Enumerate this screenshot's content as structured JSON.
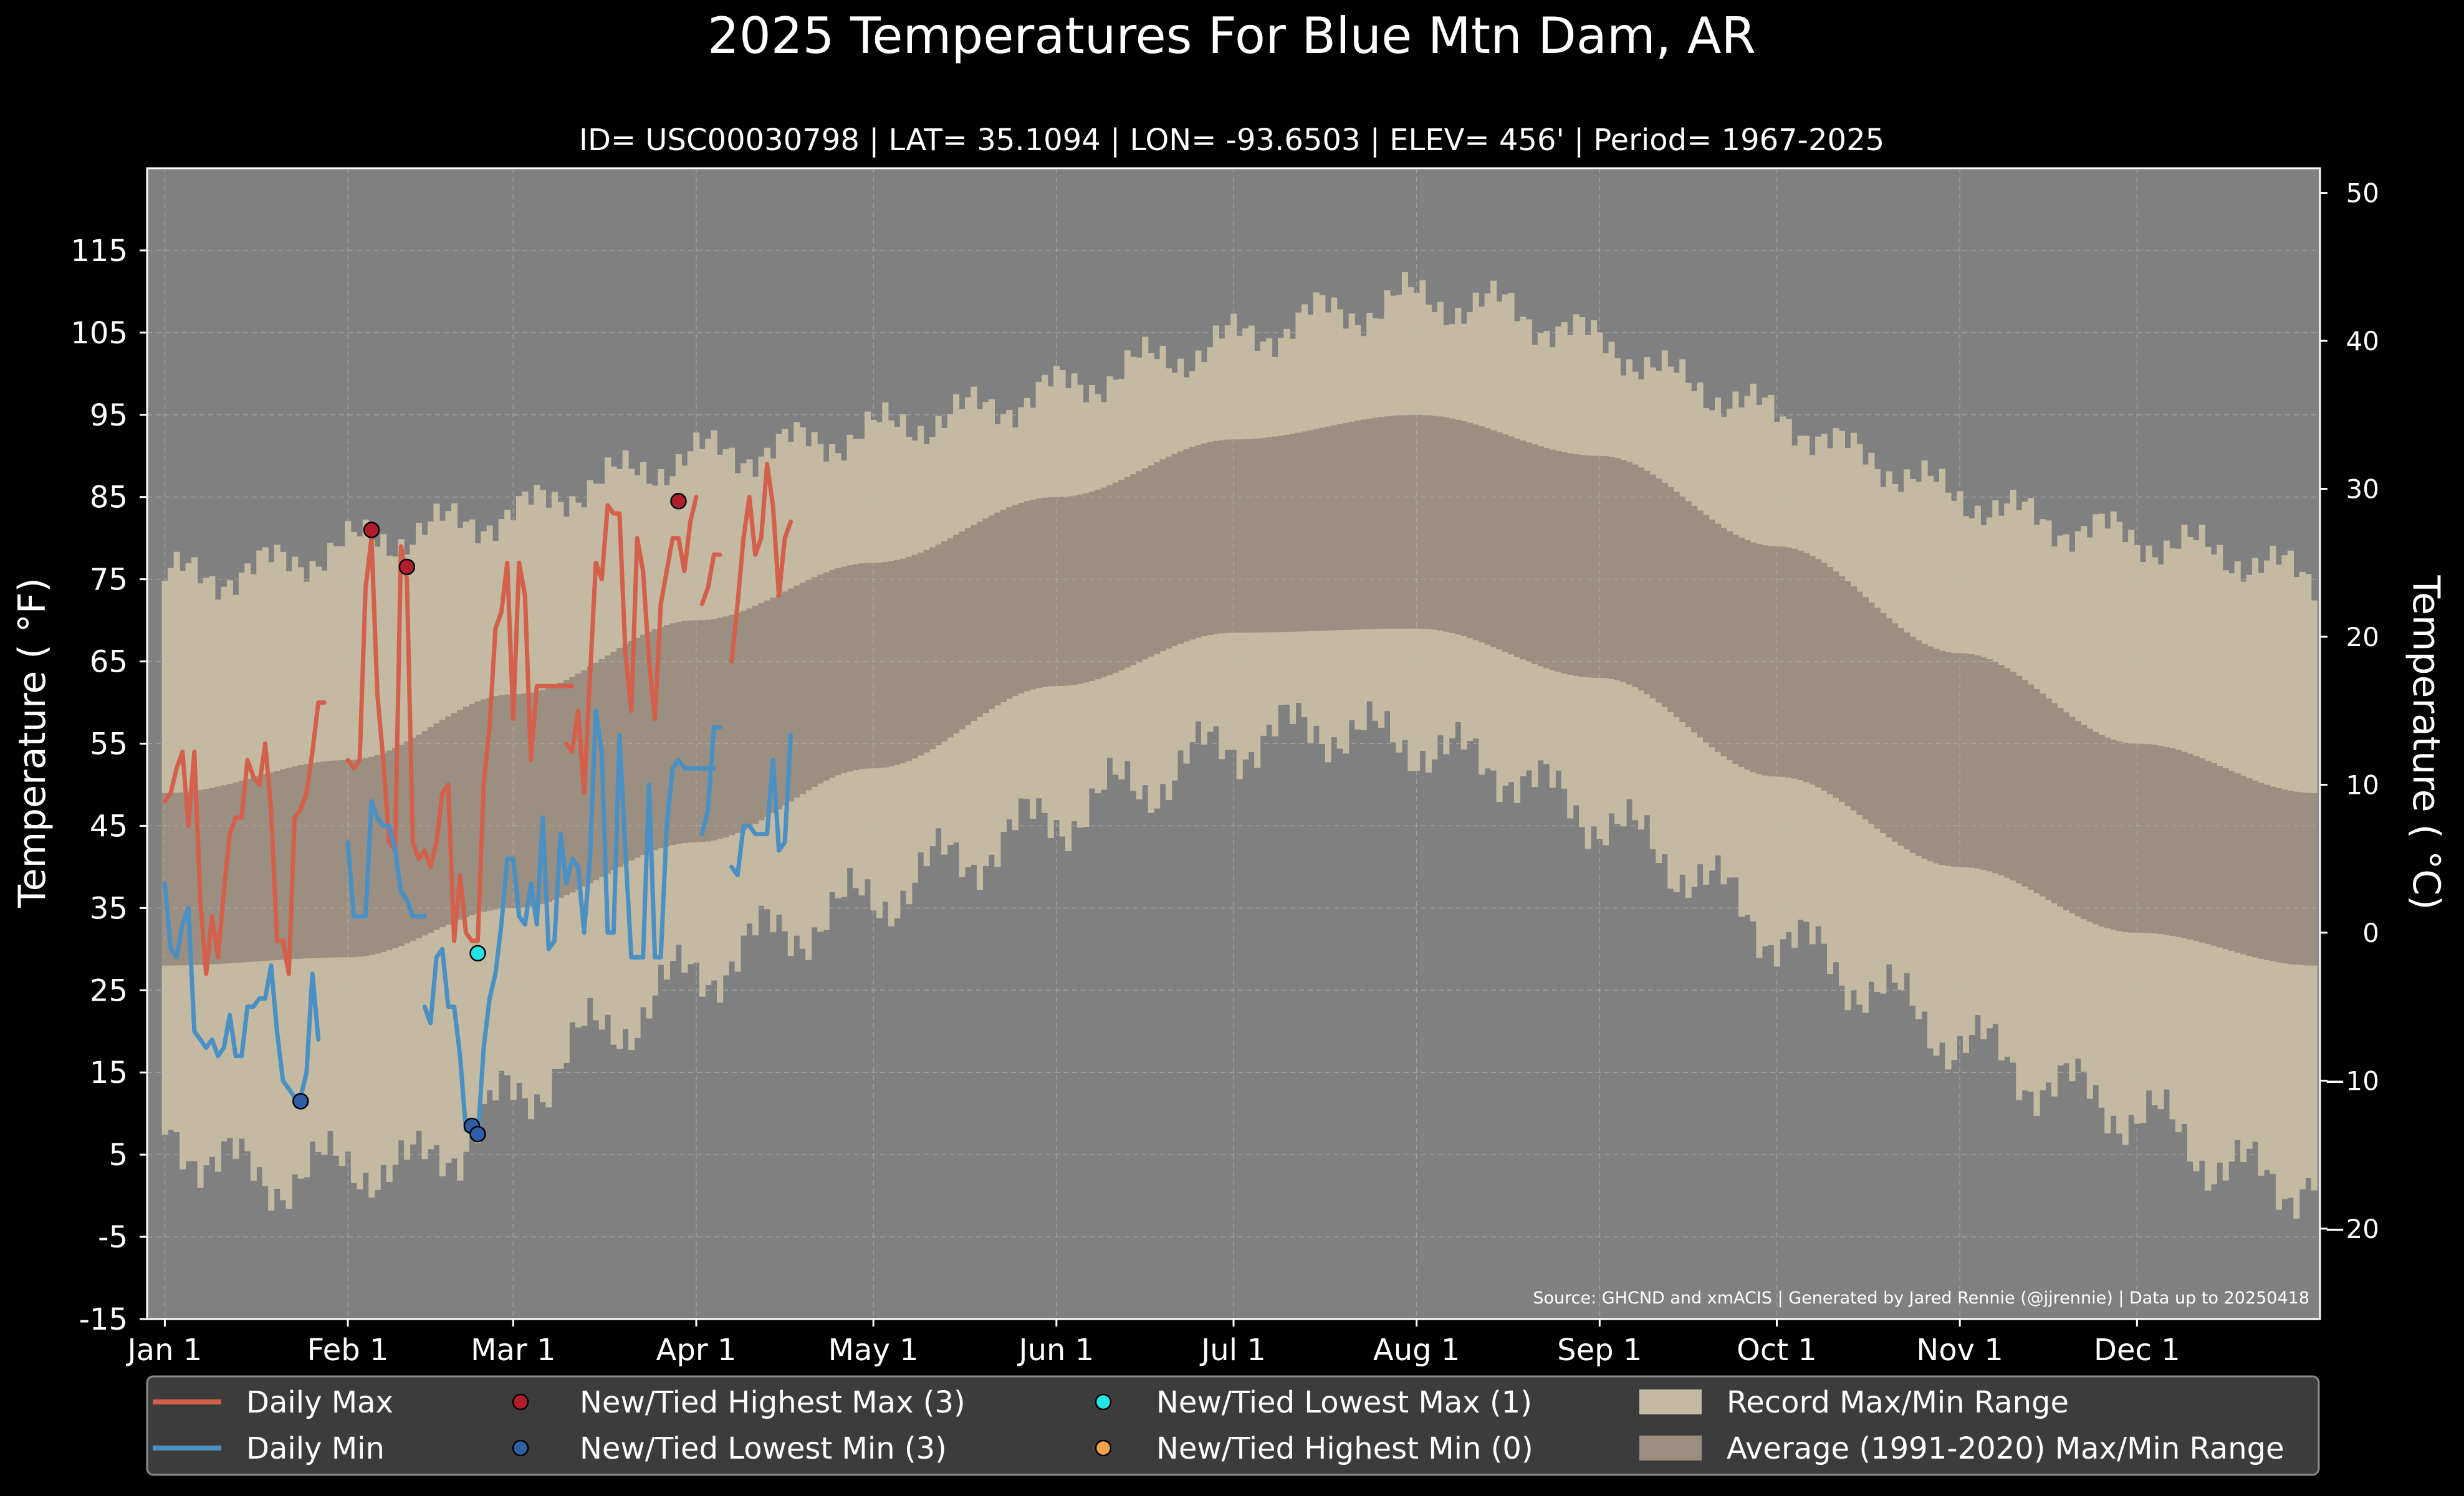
{
  "title": "2025 Temperatures For Blue Mtn Dam, AR",
  "subtitle": "ID= USC00030798 | LAT= 35.1094 | LON= -93.6503 | ELEV= 456' | Period= 1967-2025",
  "source": "Source: GHCND and xmACIS | Generated by Jared Rennie (@jjrennie) | Data up to 20250418",
  "colors": {
    "background": "#000000",
    "plot_bg": "#808080",
    "record_range": "#c4baa2",
    "normal_range": "#9a8f80",
    "daily_max": "#d4604c",
    "daily_min": "#4a90c4",
    "highest_max_marker": "#b01e2e",
    "lowest_min_marker": "#2e5ea8",
    "lowest_max_marker": "#22e6e6",
    "highest_min_marker": "#f4a34a"
  },
  "chart_data": {
    "type": "line",
    "title": "2025 Temperatures For Blue Mtn Dam, AR",
    "ylabel_left": "Temperature ( °F)",
    "ylabel_right": "Temperature ( °C)",
    "ylim_f": [
      -15,
      125
    ],
    "yticks_f": [
      -15,
      -5,
      5,
      15,
      25,
      35,
      45,
      55,
      65,
      75,
      85,
      95,
      105,
      115
    ],
    "yticks_c": [
      -20,
      -10,
      0,
      10,
      20,
      30,
      40,
      50
    ],
    "xlim_day": [
      -2,
      366
    ],
    "xtick_labels": [
      "Jan 1",
      "Feb 1",
      "Mar 1",
      "Apr 1",
      "May 1",
      "Jun 1",
      "Jul 1",
      "Aug 1",
      "Sep 1",
      "Oct 1",
      "Nov 1",
      "Dec 1"
    ],
    "xtick_days": [
      1,
      32,
      60,
      91,
      121,
      152,
      182,
      213,
      244,
      274,
      305,
      335
    ],
    "grid": true,
    "legend_placement": "bottom",
    "legend": [
      {
        "label": "Daily Max",
        "kind": "line",
        "color": "#d4604c"
      },
      {
        "label": "New/Tied Highest Max (3)",
        "kind": "dot",
        "color": "#b01e2e"
      },
      {
        "label": "New/Tied Lowest Max (1)",
        "kind": "dot",
        "color": "#22e6e6"
      },
      {
        "label": "Record Max/Min Range",
        "kind": "patch",
        "color": "#c4baa2"
      },
      {
        "label": "Daily Min",
        "kind": "line",
        "color": "#4a90c4"
      },
      {
        "label": "New/Tied Lowest Min (3)",
        "kind": "dot",
        "color": "#2e5ea8"
      },
      {
        "label": "New/Tied Highest Min (0)",
        "kind": "dot",
        "color": "#f4a34a"
      },
      {
        "label": "Average (1991-2020) Max/Min Range",
        "kind": "patch",
        "color": "#9a8f80"
      }
    ],
    "normal_range": {
      "description_hidden": false,
      "max_keypoints": {
        "day": [
          1,
          32,
          60,
          91,
          121,
          152,
          182,
          213,
          244,
          274,
          305,
          335,
          365
        ],
        "f": [
          49,
          53,
          61,
          70,
          77,
          85,
          92,
          95,
          90,
          79,
          66,
          55,
          49
        ]
      },
      "min_keypoints": {
        "day": [
          1,
          32,
          60,
          91,
          121,
          152,
          182,
          213,
          244,
          274,
          305,
          335,
          365
        ],
        "f": [
          28,
          29,
          35,
          43,
          52,
          62,
          68.5,
          69,
          63,
          51,
          40,
          32,
          28
        ]
      }
    },
    "record_range": {
      "max_keypoints": {
        "day": [
          1,
          15,
          32,
          45,
          60,
          75,
          91,
          105,
          121,
          135,
          152,
          166,
          182,
          196,
          213,
          227,
          244,
          258,
          274,
          288,
          305,
          319,
          335,
          350,
          365
        ],
        "f": [
          75,
          76,
          79,
          81,
          83,
          87,
          90,
          91,
          93,
          95,
          98,
          101,
          104,
          107,
          109,
          108,
          104,
          99,
          95,
          90,
          85,
          82,
          80,
          78,
          75
        ]
      },
      "min_keypoints": {
        "day": [
          1,
          10,
          20,
          32,
          40,
          50,
          60,
          75,
          91,
          105,
          121,
          135,
          152,
          166,
          182,
          196,
          213,
          227,
          244,
          258,
          274,
          288,
          305,
          319,
          335,
          350,
          360,
          365
        ],
        "f": [
          8,
          4,
          2,
          4,
          3,
          6,
          12,
          20,
          27,
          32,
          36,
          41,
          46,
          50,
          55,
          57,
          55,
          52,
          46,
          40,
          32,
          26,
          19,
          14,
          10,
          4,
          1,
          3
        ]
      }
    },
    "series": [
      {
        "name": "Daily Max",
        "segments": [
          {
            "day": [
              1,
              2,
              3,
              4,
              5,
              6,
              7,
              8,
              9,
              10,
              11,
              12,
              13,
              14,
              15,
              16,
              17,
              18,
              19,
              20,
              21,
              22,
              23,
              24,
              25,
              26,
              27,
              28
            ],
            "f": [
              48,
              49,
              52,
              54,
              45,
              54,
              36,
              27,
              34,
              29,
              37,
              44,
              46,
              46,
              53,
              51,
              50,
              55,
              47,
              31,
              31,
              27,
              46,
              47,
              49,
              54,
              60,
              60
            ]
          },
          {
            "day": [
              32,
              33,
              34,
              35,
              36,
              37,
              38,
              39,
              40,
              41,
              42,
              43,
              44,
              45,
              46,
              47,
              48,
              49,
              50,
              51,
              52,
              53,
              54,
              55,
              56,
              57,
              58,
              59,
              60,
              61,
              62,
              63,
              64,
              65,
              66,
              67,
              68,
              69,
              70
            ],
            "f": [
              53,
              52,
              53,
              74,
              80,
              61,
              53,
              43,
              42,
              79,
              75,
              43,
              41,
              42,
              40,
              43,
              49,
              50,
              31,
              39,
              32,
              31,
              31,
              50,
              57,
              69,
              71,
              77,
              58,
              77,
              73,
              53,
              62,
              62,
              62,
              62,
              62,
              62,
              62
            ]
          },
          {
            "day": [
              69,
              70,
              71,
              72,
              73,
              74,
              75,
              76,
              77,
              78,
              79,
              80,
              81,
              82,
              83,
              84,
              85,
              86,
              87,
              88,
              89,
              90,
              91
            ],
            "f": [
              55,
              54,
              59,
              49,
              63,
              77,
              75,
              84,
              83,
              83,
              66,
              59,
              80,
              76,
              65,
              58,
              72,
              76,
              80,
              80,
              76,
              82,
              85
            ]
          },
          {
            "day": [
              92,
              93,
              94,
              95
            ],
            "f": [
              72,
              74,
              78,
              78
            ]
          },
          {
            "day": [
              97,
              98,
              99,
              100,
              101,
              102,
              103,
              104,
              105,
              106,
              107
            ],
            "f": [
              65,
              72,
              80,
              85,
              78,
              80,
              89,
              84,
              73,
              80,
              82
            ]
          }
        ]
      },
      {
        "name": "Daily Min",
        "segments": [
          {
            "day": [
              1,
              2,
              3,
              4,
              5,
              6,
              7,
              8,
              9,
              10,
              11,
              12,
              13,
              14,
              15,
              16,
              17,
              18,
              19,
              20,
              21,
              22,
              23,
              24,
              25,
              26,
              27
            ],
            "f": [
              38,
              30,
              29,
              33,
              35,
              20,
              19,
              18,
              19,
              17,
              18,
              22,
              17,
              17,
              23,
              23,
              24,
              24,
              28,
              20,
              14,
              13,
              12,
              12,
              15,
              27,
              19
            ]
          },
          {
            "day": [
              32,
              33,
              34,
              35,
              36,
              37,
              38,
              39,
              40,
              41,
              42,
              43,
              44,
              45
            ],
            "f": [
              43,
              34,
              34,
              34,
              48,
              46,
              45,
              45,
              42,
              37,
              36,
              34,
              34,
              34
            ]
          },
          {
            "day": [
              45,
              46,
              47,
              48,
              49,
              50,
              51,
              52,
              53,
              54,
              55,
              56,
              57,
              58,
              59,
              60,
              61,
              62,
              63,
              64,
              65,
              66,
              67,
              68,
              69,
              70,
              71,
              72,
              73,
              74,
              75,
              76,
              77,
              78,
              79,
              80,
              81,
              82,
              83,
              84,
              85,
              86,
              87,
              88,
              89,
              90,
              91,
              92,
              93,
              94
            ],
            "f": [
              23,
              21,
              29,
              30,
              23,
              23,
              17,
              8,
              8,
              7,
              18,
              24,
              27,
              33,
              41,
              41,
              34,
              33,
              38,
              33,
              46,
              30,
              31,
              44,
              38,
              41,
              40,
              32,
              41,
              59,
              54,
              32,
              32,
              56,
              42,
              29,
              29,
              29,
              50,
              29,
              29,
              45,
              52,
              53,
              52,
              52,
              52,
              52,
              52,
              52
            ]
          },
          {
            "day": [
              92,
              93,
              94,
              95
            ],
            "f": [
              44,
              47,
              57,
              57
            ]
          },
          {
            "day": [
              97,
              98,
              99,
              100,
              101,
              102,
              103,
              104,
              105,
              106,
              107
            ],
            "f": [
              40,
              39,
              45,
              45,
              44,
              44,
              44,
              53,
              42,
              43,
              56
            ]
          }
        ]
      }
    ],
    "markers": [
      {
        "name": "New/Tied Highest Max (3)",
        "color": "#b01e2e",
        "points": [
          {
            "day": 36,
            "f": 81
          },
          {
            "day": 42,
            "f": 76.5
          },
          {
            "day": 88,
            "f": 84.5
          }
        ]
      },
      {
        "name": "New/Tied Lowest Min (3)",
        "color": "#2e5ea8",
        "points": [
          {
            "day": 24,
            "f": 11.5
          },
          {
            "day": 53,
            "f": 8.5
          },
          {
            "day": 54,
            "f": 7.5
          }
        ]
      },
      {
        "name": "New/Tied Lowest Max (1)",
        "color": "#22e6e6",
        "points": [
          {
            "day": 54,
            "f": 29.5
          }
        ]
      },
      {
        "name": "New/Tied Highest Min (0)",
        "color": "#f4a34a",
        "points": []
      }
    ]
  }
}
